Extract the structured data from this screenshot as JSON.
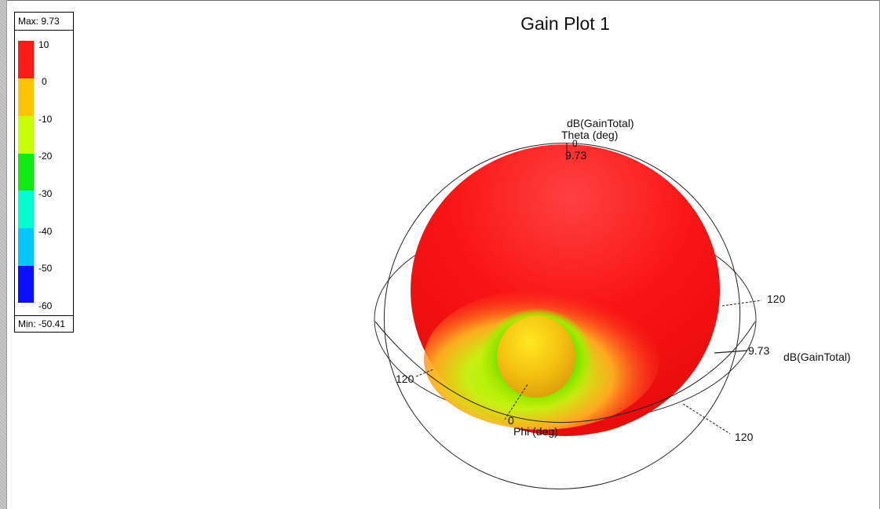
{
  "plot": {
    "title": "Gain Plot 1",
    "quantity_label": "dB(GainTotal)",
    "theta_label": "Theta (deg)",
    "phi_label": "Phi (deg)",
    "max_value_label": "9.73",
    "axis_labels": {
      "theta_zero": "0",
      "phi_zero": "0",
      "ring_right": "120",
      "ring_left": "120",
      "ring_lower_right": "120",
      "radial_value": "9.73"
    }
  },
  "legend": {
    "max_text": "Max: 9.73",
    "min_text": "Min: -50.41",
    "ticks": [
      "10",
      "0",
      "-10",
      "-20",
      "-30",
      "-40",
      "-50",
      "-60"
    ],
    "colors": [
      "#ff1a1a",
      "#ffc400",
      "#c8ff00",
      "#10ea10",
      "#00ffcc",
      "#00c8ff",
      "#0a10ff"
    ]
  }
}
